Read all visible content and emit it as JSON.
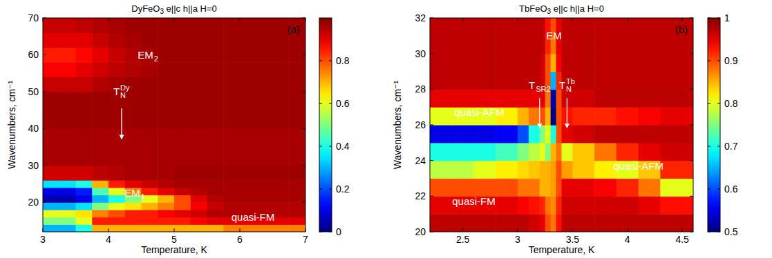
{
  "chart_data": [
    {
      "type": "heatmap",
      "title": "DyFeO3 e||c h||a H=0",
      "label": "(a)",
      "xlabel": "Temperature, K",
      "ylabel": "Wavenumbers, cm⁻¹",
      "xlim": [
        3,
        7
      ],
      "ylim": [
        12,
        70
      ],
      "xticks": [
        3,
        4,
        5,
        6,
        7
      ],
      "yticks": [
        20,
        30,
        40,
        50,
        60,
        70
      ],
      "color": "jet",
      "colorbar": {
        "range": [
          0,
          1
        ],
        "ticks": [
          0,
          0.2,
          0.4,
          0.6,
          0.8
        ]
      },
      "x_edges": [
        3,
        3.25,
        3.5,
        3.75,
        4,
        4.25,
        4.5,
        4.75,
        5,
        5.25,
        5.5,
        5.75,
        6,
        6.25,
        6.5,
        6.75,
        7
      ],
      "y_edges": [
        12,
        14,
        16,
        18,
        20,
        22,
        24,
        26,
        30,
        40,
        50,
        54,
        58,
        62,
        66,
        70
      ],
      "cells": [
        [
          0.3,
          0.3,
          0.4,
          0.7,
          0.7,
          0.7,
          0.7,
          0.7,
          0.7,
          0.7,
          0.7,
          0.75,
          0.75,
          0.75,
          0.75,
          0.75
        ],
        [
          0.5,
          0.5,
          0.6,
          0.85,
          0.85,
          0.85,
          0.85,
          0.85,
          0.85,
          0.88,
          0.9,
          0.9,
          0.9,
          0.9,
          0.9,
          0.9
        ],
        [
          0.6,
          0.6,
          0.65,
          0.75,
          0.8,
          0.85,
          0.85,
          0.88,
          0.9,
          0.92,
          0.95,
          0.95,
          0.95,
          0.95,
          0.95,
          0.95
        ],
        [
          0.3,
          0.3,
          0.35,
          0.5,
          0.6,
          0.65,
          0.7,
          0.75,
          0.8,
          0.88,
          0.93,
          0.95,
          0.95,
          0.95,
          0.95,
          0.95
        ],
        [
          0.05,
          0.05,
          0.1,
          0.3,
          0.4,
          0.5,
          0.6,
          0.7,
          0.8,
          0.9,
          0.95,
          0.96,
          0.96,
          0.96,
          0.96,
          0.96
        ],
        [
          0.1,
          0.1,
          0.15,
          0.45,
          0.6,
          0.75,
          0.85,
          0.9,
          0.93,
          0.95,
          0.96,
          0.96,
          0.96,
          0.96,
          0.96,
          0.96
        ],
        [
          0.35,
          0.35,
          0.4,
          0.7,
          0.85,
          0.9,
          0.93,
          0.95,
          0.96,
          0.96,
          0.96,
          0.96,
          0.96,
          0.96,
          0.96,
          0.96
        ],
        [
          0.92,
          0.92,
          0.92,
          0.94,
          0.95,
          0.96,
          0.96,
          0.96,
          0.97,
          0.97,
          0.97,
          0.97,
          0.97,
          0.97,
          0.97,
          0.97
        ],
        [
          0.96,
          0.96,
          0.96,
          0.96,
          0.96,
          0.96,
          0.96,
          0.96,
          0.96,
          0.96,
          0.96,
          0.96,
          0.96,
          0.96,
          0.96,
          0.96
        ],
        [
          0.97,
          0.97,
          0.97,
          0.97,
          0.97,
          0.97,
          0.97,
          0.97,
          0.97,
          0.97,
          0.97,
          0.97,
          0.97,
          0.97,
          0.97,
          0.97
        ],
        [
          0.93,
          0.93,
          0.93,
          0.95,
          0.96,
          0.97,
          0.97,
          0.97,
          0.97,
          0.97,
          0.97,
          0.97,
          0.97,
          0.97,
          0.97,
          0.97
        ],
        [
          0.88,
          0.88,
          0.9,
          0.92,
          0.94,
          0.95,
          0.96,
          0.97,
          0.97,
          0.97,
          0.97,
          0.97,
          0.97,
          0.97,
          0.97,
          0.97
        ],
        [
          0.85,
          0.85,
          0.87,
          0.9,
          0.93,
          0.95,
          0.96,
          0.97,
          0.97,
          0.97,
          0.97,
          0.97,
          0.97,
          0.97,
          0.97,
          0.97
        ],
        [
          0.9,
          0.9,
          0.9,
          0.93,
          0.95,
          0.96,
          0.97,
          0.97,
          0.97,
          0.97,
          0.97,
          0.97,
          0.97,
          0.97,
          0.97,
          0.97
        ],
        [
          0.93,
          0.93,
          0.94,
          0.95,
          0.96,
          0.97,
          0.97,
          0.97,
          0.97,
          0.97,
          0.97,
          0.97,
          0.97,
          0.97,
          0.97,
          0.97
        ]
      ],
      "annotations": [
        {
          "text": "EM",
          "sub": "2",
          "x": 4.6,
          "y": 60
        },
        {
          "text": "T",
          "sub": "N",
          "sup": "Dy",
          "x": 4.2,
          "y": 50,
          "arrow": [
            45.5,
            37
          ]
        },
        {
          "text": "EM",
          "sub": "1",
          "x": 4.4,
          "y": 22.5
        },
        {
          "text": "quasi-FM",
          "x": 6.2,
          "y": 16
        }
      ]
    },
    {
      "type": "heatmap",
      "title": "TbFeO3 e||c h||a H=0",
      "label": "(b)",
      "xlabel": "Temperature, K",
      "ylabel": "Wavenumbers, cm⁻¹",
      "xlim": [
        2.2,
        4.6
      ],
      "ylim": [
        20,
        32
      ],
      "xticks": [
        2.5,
        3,
        3.5,
        4,
        4.5
      ],
      "yticks": [
        20,
        22,
        24,
        26,
        28,
        30,
        32
      ],
      "color": "jet",
      "colorbar": {
        "range": [
          0.5,
          1
        ],
        "ticks": [
          0.5,
          0.6,
          0.7,
          0.8,
          0.9,
          1
        ]
      },
      "x_edges": [
        2.2,
        2.4,
        2.6,
        2.8,
        3.0,
        3.1,
        3.2,
        3.25,
        3.3,
        3.35,
        3.4,
        3.5,
        3.7,
        3.9,
        4.1,
        4.3,
        4.6
      ],
      "y_edges": [
        20,
        21,
        22,
        23,
        24,
        25,
        26,
        27,
        28,
        29,
        30,
        31,
        32
      ],
      "cells": [
        [
          0.97,
          0.97,
          0.97,
          0.97,
          0.97,
          0.96,
          0.95,
          0.9,
          0.88,
          0.93,
          0.97,
          0.97,
          0.97,
          0.97,
          0.97,
          0.97
        ],
        [
          0.95,
          0.95,
          0.95,
          0.95,
          0.94,
          0.93,
          0.92,
          0.88,
          0.87,
          0.92,
          0.96,
          0.96,
          0.96,
          0.96,
          0.95,
          0.93
        ],
        [
          0.9,
          0.9,
          0.9,
          0.9,
          0.88,
          0.88,
          0.85,
          0.85,
          0.86,
          0.9,
          0.95,
          0.95,
          0.94,
          0.92,
          0.88,
          0.8
        ],
        [
          0.78,
          0.78,
          0.8,
          0.82,
          0.83,
          0.84,
          0.85,
          0.85,
          0.86,
          0.9,
          0.86,
          0.84,
          0.82,
          0.8,
          0.84,
          0.92
        ],
        [
          0.7,
          0.7,
          0.7,
          0.72,
          0.75,
          0.78,
          0.8,
          0.75,
          0.85,
          0.88,
          0.8,
          0.84,
          0.88,
          0.92,
          0.95,
          0.96
        ],
        [
          0.55,
          0.55,
          0.55,
          0.56,
          0.6,
          0.7,
          0.75,
          0.8,
          0.7,
          0.9,
          0.95,
          0.96,
          0.97,
          0.97,
          0.97,
          0.97
        ],
        [
          0.8,
          0.8,
          0.8,
          0.82,
          0.85,
          0.88,
          0.9,
          0.85,
          0.5,
          0.9,
          0.93,
          0.92,
          0.92,
          0.93,
          0.94,
          0.95
        ],
        [
          0.95,
          0.95,
          0.95,
          0.95,
          0.95,
          0.95,
          0.95,
          0.88,
          0.52,
          0.9,
          0.96,
          0.96,
          0.97,
          0.97,
          0.97,
          0.97
        ],
        [
          0.97,
          0.97,
          0.97,
          0.97,
          0.97,
          0.97,
          0.96,
          0.9,
          0.65,
          0.92,
          0.97,
          0.97,
          0.97,
          0.97,
          0.97,
          0.97
        ],
        [
          0.97,
          0.97,
          0.97,
          0.97,
          0.97,
          0.97,
          0.96,
          0.9,
          0.85,
          0.94,
          0.97,
          0.97,
          0.97,
          0.97,
          0.97,
          0.97
        ],
        [
          0.97,
          0.97,
          0.97,
          0.97,
          0.97,
          0.97,
          0.97,
          0.92,
          0.88,
          0.95,
          0.97,
          0.97,
          0.97,
          0.97,
          0.97,
          0.97
        ],
        [
          0.97,
          0.97,
          0.97,
          0.97,
          0.97,
          0.97,
          0.97,
          0.93,
          0.9,
          0.95,
          0.97,
          0.97,
          0.97,
          0.97,
          0.97,
          0.97
        ]
      ],
      "annotations": [
        {
          "text": "EM",
          "x": 3.33,
          "y": 31
        },
        {
          "text": "T",
          "sub": "SR2",
          "x": 3.2,
          "y": 28.2,
          "arrow": [
            27.5,
            25.8
          ]
        },
        {
          "text": "T",
          "sub": "N",
          "sup": "Tb",
          "x": 3.45,
          "y": 28.2,
          "arrow": [
            27.5,
            25.8
          ]
        },
        {
          "text": "quasi-AFM",
          "x": 2.65,
          "y": 26.7
        },
        {
          "text": "quasi-FM",
          "x": 2.6,
          "y": 21.7
        },
        {
          "text": "quasi-AFM",
          "x": 4.1,
          "y": 23.7
        }
      ]
    }
  ]
}
